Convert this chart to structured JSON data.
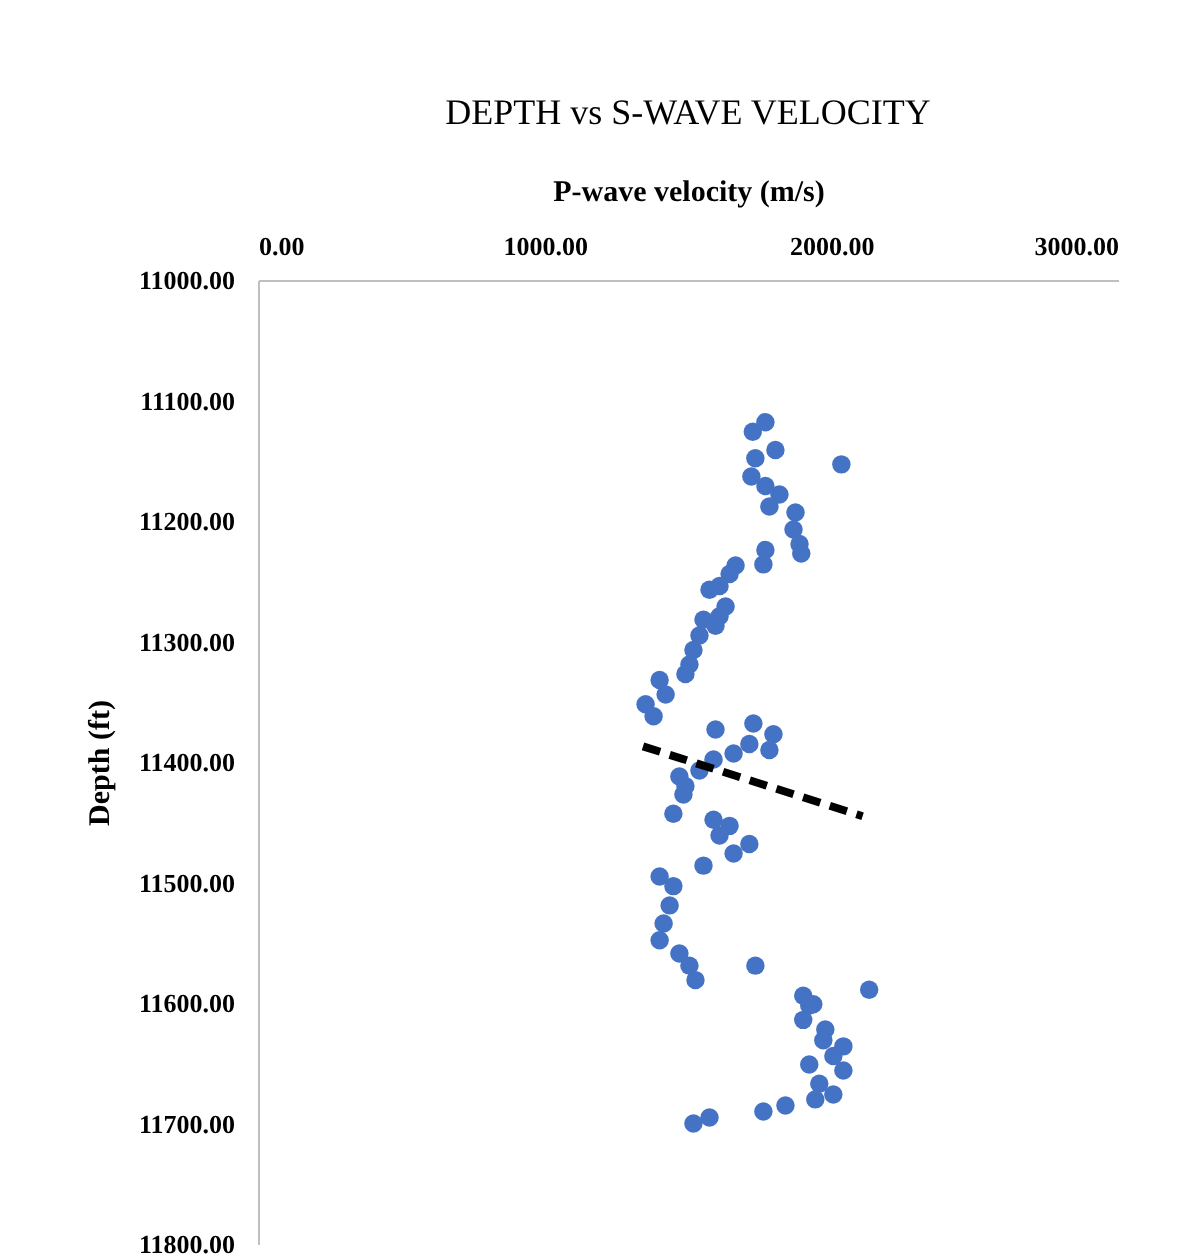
{
  "chart_data": {
    "type": "scatter",
    "title": "DEPTH vs S-WAVE VELOCITY",
    "xlabel": "P-wave velocity (m/s)",
    "ylabel": "Depth (ft)",
    "xlim": [
      0,
      3000
    ],
    "xticks": [
      {
        "value": 0,
        "label": "0.00"
      },
      {
        "value": 1000,
        "label": "1000.00"
      },
      {
        "value": 2000,
        "label": "2000.00"
      },
      {
        "value": 3000,
        "label": "3000.00"
      }
    ],
    "ylim": [
      11800,
      11000
    ],
    "yticks": [
      {
        "value": 11000,
        "label": "11000.00"
      },
      {
        "value": 11100,
        "label": "11100.00"
      },
      {
        "value": 11200,
        "label": "11200.00"
      },
      {
        "value": 11300,
        "label": "11300.00"
      },
      {
        "value": 11400,
        "label": "11400.00"
      },
      {
        "value": 11500,
        "label": "11500.00"
      },
      {
        "value": 11600,
        "label": "11600.00"
      },
      {
        "value": 11700,
        "label": "11700.00"
      },
      {
        "value": 11800,
        "label": "11800.00"
      }
    ],
    "marker": "circle",
    "series": [
      {
        "color": "#4472c4",
        "x": [
          1726,
          1770,
          1805,
          1735,
          2035,
          1721,
          1770,
          1819,
          1784,
          1875,
          1868,
          1889,
          1895,
          1770,
          1763,
          1666,
          1645,
          1610,
          1575,
          1631,
          1610,
          1554,
          1596,
          1540,
          1519,
          1505,
          1491,
          1401,
          1422,
          1352,
          1380,
          1596,
          1728,
          1798,
          1714,
          1784,
          1659,
          1589,
          1540,
          1470,
          1491,
          1484,
          1449,
          1589,
          1645,
          1610,
          1714,
          1659,
          1554,
          1401,
          1449,
          1436,
          1415,
          1401,
          1470,
          1505,
          1526,
          1735,
          2132,
          1902,
          1937,
          1923,
          1902,
          1979,
          1972,
          2042,
          2007,
          2042,
          1923,
          1958,
          2007,
          1944,
          1840,
          1763,
          1575,
          1519
        ],
        "values": [
          11126,
          11118,
          11141,
          11148,
          11153,
          11163,
          11171,
          11178,
          11188,
          11193,
          11207,
          11219,
          11227,
          11224,
          11236,
          11237,
          11244,
          11254,
          11257,
          11271,
          11279,
          11282,
          11287,
          11295,
          11307,
          11319,
          11327,
          11332,
          11344,
          11352,
          11362,
          11373,
          11368,
          11377,
          11385,
          11390,
          11393,
          11398,
          11407,
          11412,
          11420,
          11427,
          11443,
          11448,
          11453,
          11461,
          11468,
          11476,
          11486,
          11495,
          11503,
          11519,
          11534,
          11548,
          11559,
          11569,
          11581,
          11569,
          11589,
          11594,
          11601,
          11602,
          11614,
          11622,
          11631,
          11636,
          11644,
          11656,
          11651,
          11667,
          11676,
          11680,
          11685,
          11690,
          11695,
          11700
        ]
      },
      {
        "type": "line",
        "color": "#000000",
        "line_style": "dashed",
        "marker": "none",
        "x": [
          1343,
          2109
        ],
        "values": [
          11387,
          11445
        ]
      }
    ]
  }
}
